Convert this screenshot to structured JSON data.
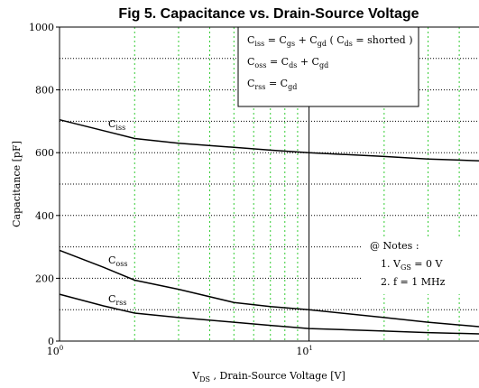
{
  "chart_data": {
    "type": "line",
    "title": "Fig 5.  Capacitance vs. Drain-Source Voltage",
    "y_label": "Capacitance  [pF]",
    "x_label": [
      "V",
      "DS",
      " , Drain-Source Voltage [V]"
    ],
    "log_x": true,
    "xlim": [
      1,
      48
    ],
    "ylim": [
      0,
      1000
    ],
    "xticks": [
      {
        "value": 1,
        "label": "10",
        "exp": "0"
      },
      {
        "value": 10,
        "label": "10",
        "exp": "1"
      }
    ],
    "xminor": [
      2,
      3,
      4,
      5,
      6,
      7,
      8,
      9,
      20,
      30,
      40
    ],
    "yticks": [
      0,
      200,
      400,
      600,
      800,
      1000
    ],
    "yminor": [
      100,
      300,
      500,
      700,
      900
    ],
    "x": [
      1,
      1.5,
      2,
      3,
      5,
      7,
      10,
      20,
      30,
      48
    ],
    "series": [
      {
        "label": [
          "C",
          "iss"
        ],
        "color": "#000000",
        "values": [
          705,
          670,
          645,
          630,
          617,
          608,
          600,
          588,
          580,
          574
        ]
      },
      {
        "label": [
          "C",
          "oss"
        ],
        "color": "#000000",
        "values": [
          289,
          235,
          194,
          165,
          123,
          110,
          100,
          75,
          60,
          46
        ]
      },
      {
        "label": [
          "C",
          "rss"
        ],
        "color": "#000000",
        "values": [
          149,
          112,
          89,
          75,
          60,
          50,
          40,
          32,
          27,
          23
        ]
      }
    ],
    "formulas": [
      [
        "C",
        "iss",
        " = C",
        "gs",
        " + C",
        "gd",
        "  ( C",
        "ds",
        " = shorted )"
      ],
      [
        "C",
        "oss",
        " = C",
        "ds",
        " + C",
        "gd"
      ],
      [
        "C",
        "rss",
        " = C",
        "gd"
      ]
    ],
    "notes_title": "@ Notes :",
    "notes": [
      [
        "1. V",
        "GS",
        " = 0 V"
      ],
      [
        "2. f = 1 MHz"
      ]
    ]
  }
}
